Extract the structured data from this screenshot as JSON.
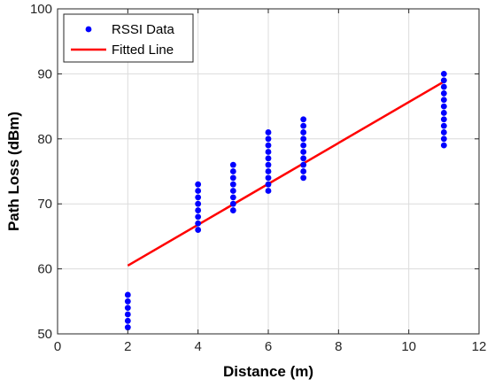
{
  "chart_data": {
    "type": "scatter",
    "xlabel": "Distance (m)",
    "ylabel": "Path Loss (dBm)",
    "xlim": [
      0,
      12
    ],
    "ylim": [
      50,
      100
    ],
    "xticks": [
      0,
      2,
      4,
      6,
      8,
      10,
      12
    ],
    "yticks": [
      50,
      60,
      70,
      80,
      90,
      100
    ],
    "grid": true,
    "legend_position": "top-left",
    "series": [
      {
        "name": "RSSI Data",
        "kind": "scatter",
        "color": "#0000ff",
        "points": [
          [
            2,
            51
          ],
          [
            2,
            52
          ],
          [
            2,
            53
          ],
          [
            2,
            54
          ],
          [
            2,
            55
          ],
          [
            2,
            56
          ],
          [
            4,
            66
          ],
          [
            4,
            67
          ],
          [
            4,
            68
          ],
          [
            4,
            69
          ],
          [
            4,
            70
          ],
          [
            4,
            71
          ],
          [
            4,
            72
          ],
          [
            4,
            73
          ],
          [
            5,
            69
          ],
          [
            5,
            70
          ],
          [
            5,
            71
          ],
          [
            5,
            72
          ],
          [
            5,
            73
          ],
          [
            5,
            74
          ],
          [
            5,
            75
          ],
          [
            5,
            76
          ],
          [
            6,
            72
          ],
          [
            6,
            73
          ],
          [
            6,
            74
          ],
          [
            6,
            75
          ],
          [
            6,
            76
          ],
          [
            6,
            77
          ],
          [
            6,
            78
          ],
          [
            6,
            79
          ],
          [
            6,
            80
          ],
          [
            6,
            81
          ],
          [
            7,
            74
          ],
          [
            7,
            75
          ],
          [
            7,
            76
          ],
          [
            7,
            77
          ],
          [
            7,
            78
          ],
          [
            7,
            79
          ],
          [
            7,
            80
          ],
          [
            7,
            81
          ],
          [
            7,
            82
          ],
          [
            7,
            83
          ],
          [
            11,
            79
          ],
          [
            11,
            80
          ],
          [
            11,
            81
          ],
          [
            11,
            82
          ],
          [
            11,
            83
          ],
          [
            11,
            84
          ],
          [
            11,
            85
          ],
          [
            11,
            86
          ],
          [
            11,
            87
          ],
          [
            11,
            88
          ],
          [
            11,
            89
          ],
          [
            11,
            90
          ]
        ]
      },
      {
        "name": "Fitted Line",
        "kind": "line",
        "color": "#ff0000",
        "points": [
          [
            2,
            60.5
          ],
          [
            11,
            88.8
          ]
        ]
      }
    ]
  }
}
